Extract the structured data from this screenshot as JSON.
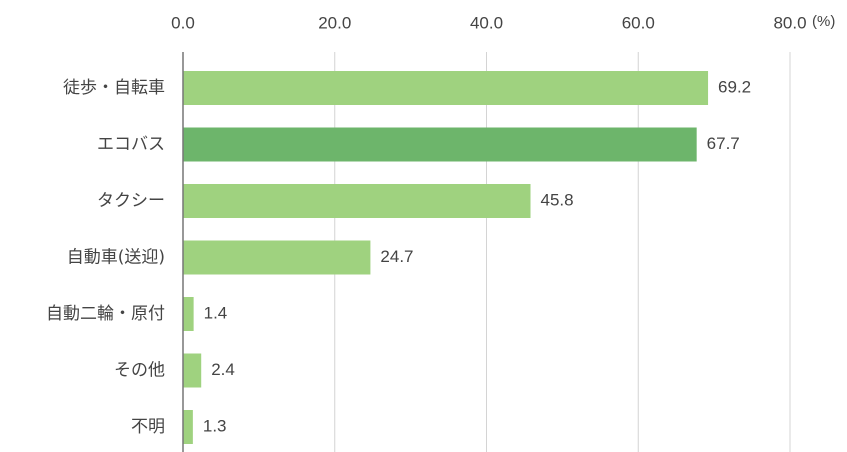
{
  "chart_data": {
    "type": "hbar",
    "categories": [
      "徒歩・自転車",
      "エコバス",
      "タクシー",
      "自動車(送迎)",
      "自動二輪・原付",
      "その他",
      "不明"
    ],
    "values": [
      69.2,
      67.7,
      45.8,
      24.7,
      1.4,
      2.4,
      1.3
    ],
    "colors": [
      "#9fd27f",
      "#6db56b",
      "#9fd27f",
      "#9fd27f",
      "#9fd27f",
      "#9fd27f",
      "#9fd27f"
    ],
    "xlim": [
      0,
      80
    ],
    "xticks": [
      {
        "value": 0,
        "label": "0.0"
      },
      {
        "value": 20,
        "label": "20.0"
      },
      {
        "value": 40,
        "label": "40.0"
      },
      {
        "value": 60,
        "label": "60.0"
      },
      {
        "value": 80,
        "label": "80.0"
      }
    ],
    "x_unit": "(%)",
    "grid": true
  }
}
